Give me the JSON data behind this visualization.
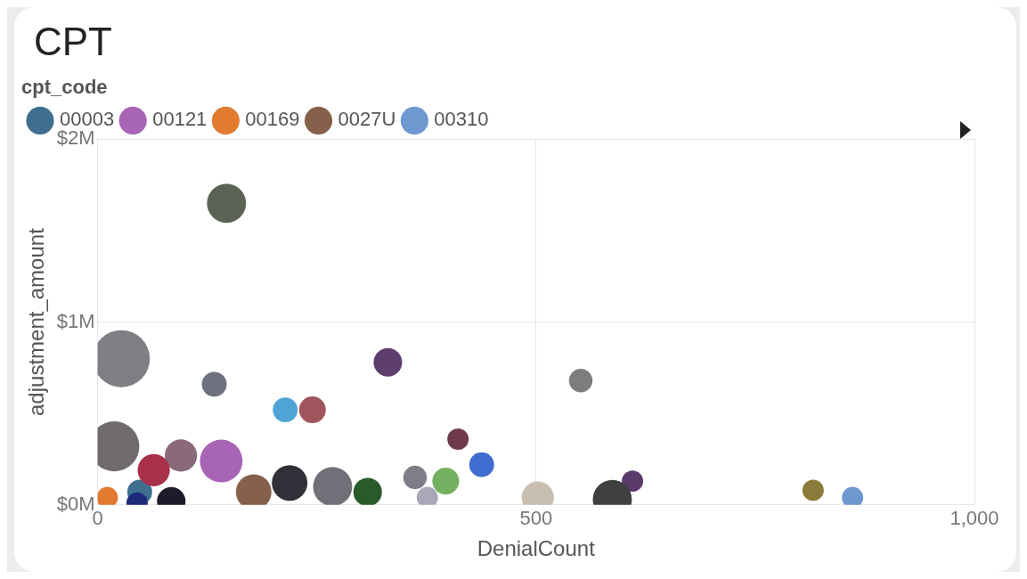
{
  "chart_data": {
    "type": "bubble",
    "title": "CPT",
    "xlabel": "DenialCount",
    "ylabel": "adjustment_amount",
    "legend_title": "cpt_code",
    "legend": "top left",
    "grid": true,
    "xlim": [
      0,
      1000
    ],
    "xticks": [
      0,
      500,
      {
        "value": 1000,
        "label": "1,000"
      }
    ],
    "ylim": [
      0,
      2000000
    ],
    "yticks": [
      {
        "value": 0,
        "label": "$0M"
      },
      {
        "value": 1000000,
        "label": "$1M"
      },
      {
        "value": 2000000,
        "label": "$2M"
      }
    ],
    "series": [
      {
        "name": "00003",
        "color": "#3f6e8e",
        "x": [
          48
        ],
        "values": [
          70000
        ],
        "sizes": [
          0.19
        ]
      },
      {
        "name": "00121",
        "color": "#a865b5",
        "x": [
          141
        ],
        "values": [
          240000
        ],
        "sizes": [
          0.56
        ]
      },
      {
        "name": "00169",
        "color": "#e07b30",
        "x": [
          11
        ],
        "values": [
          40000
        ],
        "sizes": [
          0.14
        ]
      },
      {
        "name": "0027U",
        "color": "#85604a",
        "x": [
          178
        ],
        "values": [
          70000
        ],
        "sizes": [
          0.39
        ]
      },
      {
        "name": "00310",
        "color": "#6d98d0",
        "x": [
          861
        ],
        "values": [
          40000
        ],
        "sizes": [
          0.14
        ]
      },
      {
        "colors": [
          "#5d6354",
          "#807d84",
          "#6e717e",
          "#5e3e6e",
          "#4fa3d6",
          "#a0545c",
          "#7d7d7d",
          "#6e3a4c",
          "#3f6ed0",
          "#74b060",
          "#7e7e88",
          "#5a3a6a",
          "#8c7a3a",
          "#404040",
          "#c8beb0",
          "#303038",
          "#707078",
          "#2a5a2a",
          "#6e6a6e",
          "#8a6a7a",
          "#a8304a",
          "#1e2a7a",
          "#1c1c2c",
          "#a8a8b8"
        ],
        "x": [
          147,
          27,
          133,
          331,
          214,
          245,
          551,
          411,
          438,
          397,
          362,
          610,
          816,
          587,
          502,
          219,
          268,
          308,
          19,
          95,
          64,
          45,
          84,
          376
        ],
        "values": [
          1650000,
          800000,
          660000,
          780000,
          520000,
          520000,
          680000,
          360000,
          220000,
          130000,
          150000,
          130000,
          80000,
          30000,
          40000,
          120000,
          100000,
          70000,
          320000,
          270000,
          190000,
          10000,
          20000,
          40000
        ],
        "sizes": [
          0.47,
          1,
          0.19,
          0.25,
          0.19,
          0.22,
          0.17,
          0.14,
          0.19,
          0.22,
          0.17,
          0.14,
          0.14,
          0.47,
          0.32,
          0.39,
          0.47,
          0.25,
          0.77,
          0.32,
          0.32,
          0.14,
          0.25,
          0.14
        ]
      }
    ]
  }
}
